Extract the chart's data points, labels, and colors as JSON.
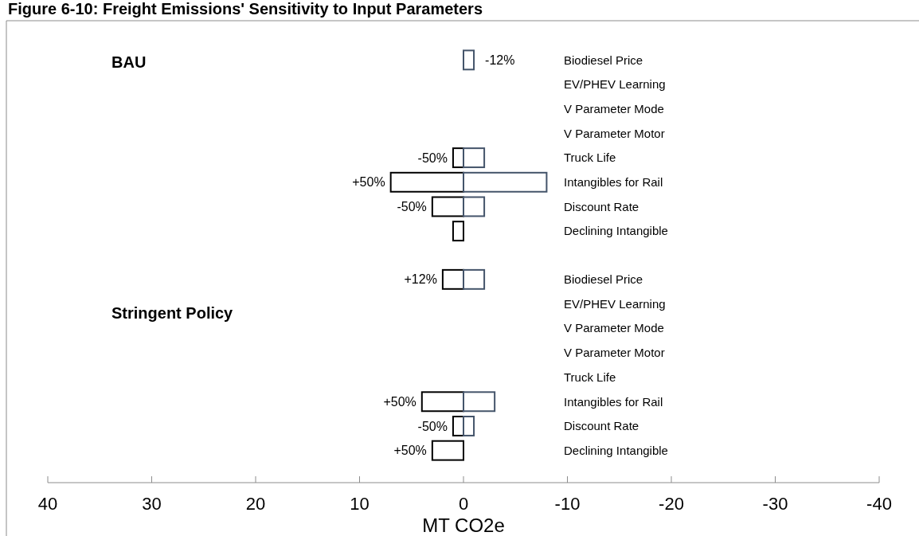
{
  "chart_data": [
    {
      "type": "bar",
      "orientation": "horizontal",
      "title": "BAU",
      "tick_labels": false,
      "annotations": [
        "Figure 6-10: Freight Emissions' Sensitivity to Input Parameters",
        {
          "text": "-12%",
          "x": -1,
          "y": "Biodiesel Price"
        },
        {
          "text": "-50%",
          "x": 1,
          "y": "Truck Life"
        },
        {
          "text": "+50%",
          "x": 7,
          "y": "Intangibles for Rail"
        },
        {
          "text": "-50%",
          "x": 3,
          "y": "Discount Rate"
        }
      ],
      "categories": [
        "Biodiesel Price",
        "EV/PHEV Learning",
        "V Parameter  Mode",
        "V Parameter Motor",
        "Truck Life",
        "Intangibles for Rail",
        "Discount Rate",
        "Declining Intangible"
      ],
      "series": [
        {
          "color": "#000000",
          "values": [
            0,
            0,
            0,
            0,
            1,
            7,
            3,
            1
          ]
        },
        {
          "color": "#44546a",
          "values": [
            -1,
            0,
            0,
            0,
            -2,
            -8,
            -2,
            0
          ]
        }
      ],
      "xlim": [
        40,
        -40
      ],
      "xticks": [
        40,
        30,
        20,
        10,
        0,
        -10,
        -20,
        -30,
        -40
      ]
    },
    {
      "type": "bar",
      "orientation": "horizontal",
      "title": "Stringent Policy",
      "xlabel": "MT CO2e",
      "annotations": [
        {
          "text": "+12%",
          "x": 2,
          "y": "Biodiesel Price"
        },
        {
          "text": "+50%",
          "x": 4,
          "y": "Intangibles for Rail"
        },
        {
          "text": "-50%",
          "x": 1,
          "y": "Discount Rate"
        },
        {
          "text": "+50%",
          "x": 3,
          "y": "Declining Intangible"
        }
      ],
      "categories": [
        "Biodiesel Price",
        "EV/PHEV Learning",
        "V Parameter  Mode",
        "V Parameter Motor",
        "Truck Life",
        "Intangibles for Rail",
        "Discount Rate",
        "Declining Intangible"
      ],
      "series": [
        {
          "color": "#000000",
          "values": [
            2,
            0,
            0,
            0,
            0,
            4,
            1,
            3
          ]
        },
        {
          "color": "#44546a",
          "values": [
            -2,
            0,
            0,
            0,
            0,
            -3,
            -1,
            0
          ]
        }
      ],
      "xlim": [
        40,
        -40
      ],
      "xticks": [
        40,
        30,
        20,
        10,
        0,
        -10,
        -20,
        -30,
        -40
      ]
    }
  ]
}
